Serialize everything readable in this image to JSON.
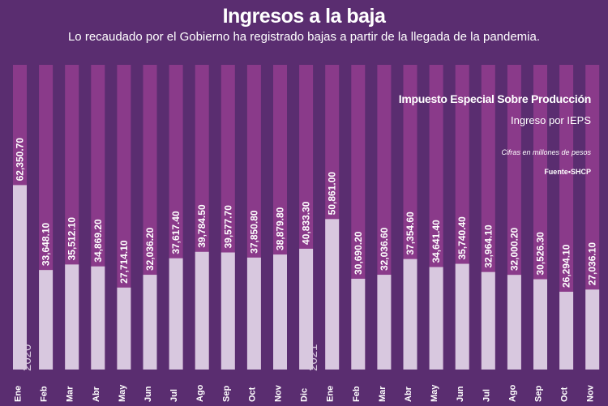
{
  "chart_data": {
    "type": "bar",
    "title": "Ingresos a la baja",
    "subtitle": "Lo recaudado por el Gobierno ha registrado bajas a partir de la llegada de la pandemia.",
    "series_name": "Impuesto Especial Sobre Producción",
    "series_label": "Ingreso por IEPS",
    "units_note": "Cifras en millones de pesos",
    "source_label": "Fuente",
    "source_name": "SHCP",
    "categories": [
      "Ene",
      "Feb",
      "Mar",
      "Abr",
      "May",
      "Jun",
      "Jul",
      "Ago",
      "Sep",
      "Oct",
      "Nov",
      "Dic",
      "Ene",
      "Feb",
      "Mar",
      "Abr",
      "May",
      "Jun",
      "Jul",
      "Ago",
      "Sep",
      "Oct",
      "Nov"
    ],
    "year_labels": [
      {
        "index": 0,
        "label": "2020"
      },
      {
        "index": 11,
        "label": "2021"
      }
    ],
    "values": [
      62350.7,
      33648.1,
      35512.1,
      34869.2,
      27714.1,
      32036.2,
      37617.4,
      39784.5,
      39577.7,
      37850.8,
      38879.8,
      40833.3,
      50861.0,
      30690.2,
      32036.6,
      37354.6,
      34641.4,
      35740.4,
      32964.1,
      32000.2,
      30526.3,
      26294.1,
      27036.1
    ],
    "value_labels": [
      "62,350.70",
      "33,648.10",
      "35,512.10",
      "34,869.20",
      "27,714.10",
      "32,036.20",
      "37,617.40",
      "39,784.50",
      "39,577.70",
      "37,850.80",
      "38,879.80",
      "40,833.30",
      "50,861.00",
      "30,690.20",
      "32,036.60",
      "37,354.60",
      "34,641.40",
      "35,740.40",
      "32,964.10",
      "32,000.20",
      "30,526.30",
      "26,294.10",
      "27,036.10"
    ],
    "ylim": [
      0,
      103000
    ],
    "colors": {
      "background": "#5a2d70",
      "track": "#8a3a8a",
      "bar": "#d8c8df",
      "text": "#ffffff"
    }
  }
}
